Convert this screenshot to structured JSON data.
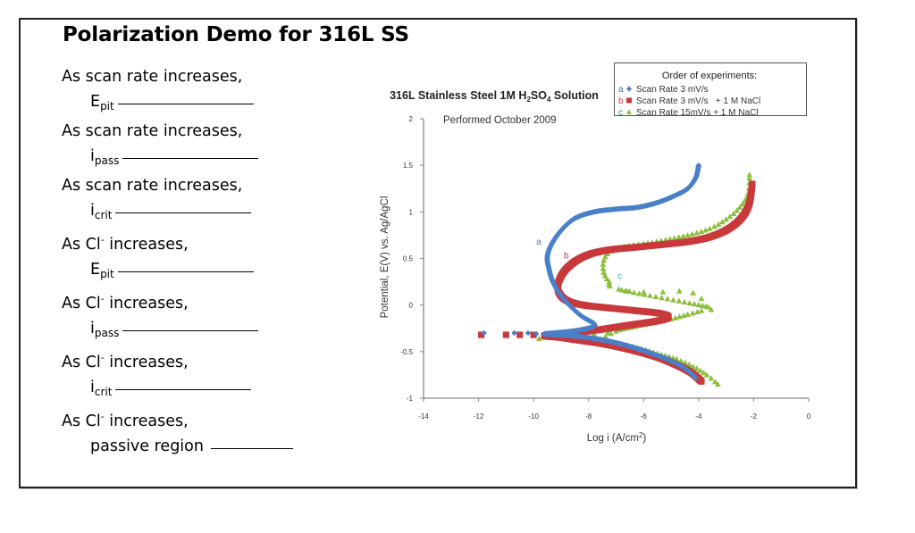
{
  "slide": {
    "title": "Polarization Demo for 316L SS",
    "questions": [
      {
        "lead": "As scan rate increases,",
        "sym": "E",
        "sub": "pit"
      },
      {
        "lead": "As scan rate increases,",
        "sym": "i",
        "sub": "pass"
      },
      {
        "lead": "As scan rate increases,",
        "sym": "i",
        "sub": "crit"
      },
      {
        "lead": "As Cl",
        "sup": "-",
        "lead2": " increases,",
        "sym": "E",
        "sub": "pit"
      },
      {
        "lead": "As Cl",
        "sup": "-",
        "lead2": " increases,",
        "sym": "i",
        "sub": "pass"
      },
      {
        "lead": "As Cl",
        "sup": "-",
        "lead2": " increases,",
        "sym": "i",
        "sub": "crit"
      },
      {
        "lead": "As Cl",
        "sup": "-",
        "lead2": " increases,",
        "sym": "passive region",
        "sub": ""
      }
    ]
  },
  "chart_data": {
    "type": "scatter",
    "title": "316L Stainless Steel 1M H₂SO₄ Solution",
    "title_parts": [
      "316L Stainless Steel 1M H",
      "2",
      "SO",
      "4",
      " Solution"
    ],
    "subtitle": "Performed October 2009",
    "xlabel": "Log i (A/cm²)",
    "ylabel": "Potential, E(V) vs. Ag/AgCl",
    "xlim": [
      -14,
      0
    ],
    "ylim": [
      -1,
      2
    ],
    "xticks": [
      -14,
      -12,
      -10,
      -8,
      -6,
      -4,
      -2,
      0
    ],
    "yticks": [
      -1,
      -0.5,
      0,
      0.5,
      1,
      1.5,
      2
    ],
    "xtick_labels": [
      "-14",
      "-12",
      "-10",
      "-8",
      "-6",
      "-4",
      "-2",
      "0"
    ],
    "ytick_labels": [
      "-1",
      "-0.5",
      "0",
      "0.5",
      "1",
      "1.5",
      "2"
    ],
    "grid": false,
    "legend": {
      "title": "Order of experiments:",
      "placement": "top-right",
      "entries": [
        {
          "key": "a",
          "label": "Scan Rate 3 mV/s",
          "marker": "diamond",
          "color": "#4a7fc9"
        },
        {
          "key": "b",
          "label": "Scan Rate 3 mV/s   + 1 M NaCl",
          "marker": "square",
          "color": "#c9393b"
        },
        {
          "key": "c",
          "label": "Scan Rate 15mV/s + 1 M NaCl",
          "marker": "triangle",
          "color": "#8cbf3f"
        }
      ]
    },
    "series": [
      {
        "name": "a",
        "label": "Scan Rate 3 mV/s",
        "color": "#4a7fc9",
        "marker": "diamond",
        "annotation": {
          "text": "a",
          "x": -9.9,
          "y": 0.65
        },
        "cathodic_sparse": [
          [
            -11.8,
            -0.3
          ],
          [
            -10.7,
            -0.3
          ],
          [
            -10.2,
            -0.3
          ],
          [
            -9.9,
            -0.31
          ]
        ],
        "points": [
          [
            -4.1,
            -0.78
          ],
          [
            -4.5,
            -0.68
          ],
          [
            -5.0,
            -0.6
          ],
          [
            -5.6,
            -0.53
          ],
          [
            -6.2,
            -0.47
          ],
          [
            -6.8,
            -0.42
          ],
          [
            -7.4,
            -0.38
          ],
          [
            -8.0,
            -0.35
          ],
          [
            -8.6,
            -0.33
          ],
          [
            -9.2,
            -0.32
          ],
          [
            -9.6,
            -0.31
          ],
          [
            -8.6,
            -0.28
          ],
          [
            -7.9,
            -0.24
          ],
          [
            -7.8,
            -0.2
          ],
          [
            -8.2,
            -0.13
          ],
          [
            -8.6,
            -0.03
          ],
          [
            -9.0,
            0.1
          ],
          [
            -9.3,
            0.25
          ],
          [
            -9.45,
            0.4
          ],
          [
            -9.5,
            0.52
          ],
          [
            -9.35,
            0.65
          ],
          [
            -9.0,
            0.8
          ],
          [
            -8.5,
            0.93
          ],
          [
            -7.8,
            1.0
          ],
          [
            -7.0,
            1.03
          ],
          [
            -6.2,
            1.05
          ],
          [
            -5.5,
            1.1
          ],
          [
            -4.9,
            1.17
          ],
          [
            -4.4,
            1.25
          ],
          [
            -4.1,
            1.37
          ],
          [
            -4.0,
            1.5
          ]
        ]
      },
      {
        "name": "b",
        "label": "Scan Rate 3 mV/s + 1 M NaCl",
        "color": "#c9393b",
        "marker": "square",
        "annotation": {
          "text": "b",
          "x": -8.9,
          "y": 0.5
        },
        "cathodic_sparse": [
          [
            -11.9,
            -0.32
          ],
          [
            -11.0,
            -0.32
          ],
          [
            -10.5,
            -0.32
          ],
          [
            -10.0,
            -0.32
          ]
        ],
        "points": [
          [
            -3.9,
            -0.82
          ],
          [
            -4.3,
            -0.72
          ],
          [
            -4.9,
            -0.63
          ],
          [
            -5.5,
            -0.56
          ],
          [
            -6.2,
            -0.5
          ],
          [
            -6.9,
            -0.45
          ],
          [
            -7.6,
            -0.41
          ],
          [
            -8.3,
            -0.38
          ],
          [
            -9.0,
            -0.35
          ],
          [
            -9.6,
            -0.33
          ],
          [
            -8.6,
            -0.3
          ],
          [
            -7.5,
            -0.26
          ],
          [
            -6.4,
            -0.21
          ],
          [
            -5.5,
            -0.17
          ],
          [
            -5.1,
            -0.13
          ],
          [
            -5.4,
            -0.09
          ],
          [
            -6.3,
            -0.06
          ],
          [
            -7.3,
            -0.03
          ],
          [
            -8.2,
            0.0
          ],
          [
            -8.8,
            0.05
          ],
          [
            -9.1,
            0.15
          ],
          [
            -9.05,
            0.28
          ],
          [
            -8.7,
            0.42
          ],
          [
            -8.1,
            0.53
          ],
          [
            -7.3,
            0.59
          ],
          [
            -6.3,
            0.62
          ],
          [
            -5.3,
            0.65
          ],
          [
            -4.4,
            0.68
          ],
          [
            -3.6,
            0.73
          ],
          [
            -2.9,
            0.82
          ],
          [
            -2.4,
            0.95
          ],
          [
            -2.15,
            1.1
          ],
          [
            -2.05,
            1.3
          ]
        ]
      },
      {
        "name": "c",
        "label": "Scan Rate 15mV/s + 1 M NaCl",
        "color": "#8cbf3f",
        "marker": "triangle",
        "annotation": {
          "text": "c",
          "x": -6.95,
          "y": 0.28
        },
        "cathodic_sparse": [
          [
            -9.8,
            -0.36
          ],
          [
            -9.3,
            -0.35
          ],
          [
            -8.3,
            -0.33
          ],
          [
            -7.8,
            -0.31
          ],
          [
            -7.3,
            -0.3
          ]
        ],
        "passive_sparse": [
          [
            -6.6,
            0.15
          ],
          [
            -6.0,
            0.14
          ],
          [
            -5.3,
            0.14
          ],
          [
            -4.7,
            0.15
          ],
          [
            -4.2,
            0.13
          ],
          [
            -3.9,
            0.07
          ]
        ],
        "points": [
          [
            -3.3,
            -0.85
          ],
          [
            -3.7,
            -0.75
          ],
          [
            -4.2,
            -0.66
          ],
          [
            -4.8,
            -0.58
          ],
          [
            -5.5,
            -0.52
          ],
          [
            -6.2,
            -0.46
          ],
          [
            -6.9,
            -0.42
          ],
          [
            -7.6,
            -0.39
          ],
          [
            -7.0,
            -0.28
          ],
          [
            -6.3,
            -0.23
          ],
          [
            -5.6,
            -0.19
          ],
          [
            -5.0,
            -0.15
          ],
          [
            -4.4,
            -0.1
          ],
          [
            -3.9,
            -0.06
          ],
          [
            -3.65,
            -0.02
          ],
          [
            -6.9,
            0.17
          ],
          [
            -7.25,
            0.25
          ],
          [
            -7.45,
            0.35
          ],
          [
            -7.45,
            0.48
          ],
          [
            -7.2,
            0.58
          ],
          [
            -6.7,
            0.63
          ],
          [
            -6.0,
            0.66
          ],
          [
            -5.2,
            0.7
          ],
          [
            -4.4,
            0.75
          ],
          [
            -3.6,
            0.82
          ],
          [
            -3.0,
            0.92
          ],
          [
            -2.5,
            1.05
          ],
          [
            -2.2,
            1.2
          ],
          [
            -2.15,
            1.4
          ]
        ]
      }
    ]
  }
}
